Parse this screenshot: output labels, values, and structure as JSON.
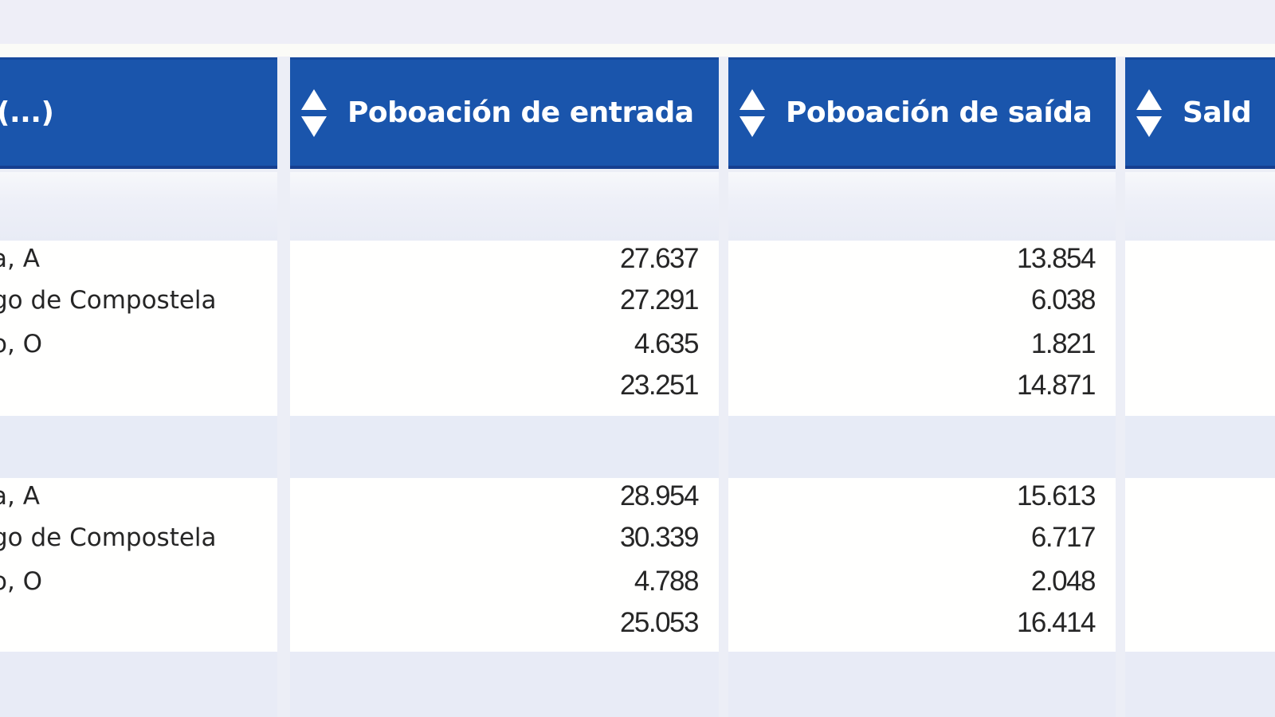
{
  "table": {
    "columns": [
      {
        "label": "(...)",
        "sortable": false
      },
      {
        "label": "Poboación de entrada",
        "sortable": true,
        "sort_icon": "sort-up-down-icon"
      },
      {
        "label": "Poboación de saída",
        "sortable": true,
        "sort_icon": "sort-up-down-icon"
      },
      {
        "label": "Sald",
        "sortable": true,
        "sort_icon": "sort-up-down-icon"
      }
    ],
    "groups": [
      {
        "rows": [
          {
            "name": "a, A",
            "entrada": "27.637",
            "saida": "13.854"
          },
          {
            "name": "go de Compostela",
            "entrada": "27.291",
            "saida": "6.038"
          },
          {
            "name": "o, O",
            "entrada": "4.635",
            "saida": "1.821"
          },
          {
            "name": "",
            "entrada": "23.251",
            "saida": "14.871"
          }
        ]
      },
      {
        "rows": [
          {
            "name": "a, A",
            "entrada": "28.954",
            "saida": "15.613"
          },
          {
            "name": "go de Compostela",
            "entrada": "30.339",
            "saida": "6.717"
          },
          {
            "name": "o, O",
            "entrada": "4.788",
            "saida": "2.048"
          },
          {
            "name": "",
            "entrada": "25.053",
            "saida": "16.414"
          }
        ]
      }
    ]
  },
  "colors": {
    "header_bg": "#1a55ac",
    "header_text": "#ffffff",
    "row_bg": "#fffffe",
    "band_bg": "#e9edf7",
    "text": "#262626"
  }
}
